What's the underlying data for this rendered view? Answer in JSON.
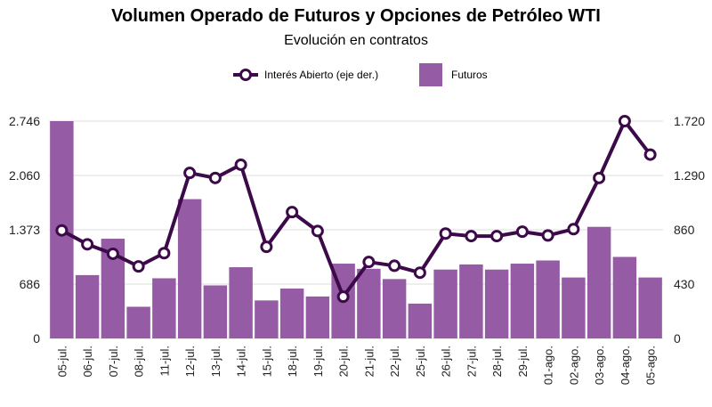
{
  "chart_data": {
    "type": "bar",
    "title": "Volumen Operado de Futuros y Opciones de Petróleo WTI",
    "subtitle": "Evolución en contratos",
    "categories": [
      "05-jul.",
      "06-jul.",
      "07-jul.",
      "08-jul.",
      "11-jul.",
      "12-jul.",
      "13-jul.",
      "14-jul.",
      "15-jul.",
      "18-jul.",
      "19-jul.",
      "20-jul.",
      "21-jul.",
      "22-jul.",
      "25-jul.",
      "26-jul.",
      "27-jul.",
      "28-jul.",
      "29-jul.",
      "01-ago.",
      "02-ago.",
      "03-ago.",
      "04-ago.",
      "05-ago."
    ],
    "series": [
      {
        "name": "Futuros",
        "type": "bar",
        "axis": "left",
        "color": "#955ba5",
        "values": [
          2746,
          800,
          1260,
          400,
          760,
          1760,
          670,
          900,
          480,
          630,
          530,
          945,
          880,
          750,
          440,
          870,
          935,
          870,
          945,
          985,
          770,
          1410,
          1030,
          770
        ]
      },
      {
        "name": "Interés Abierto (eje der.)",
        "type": "line",
        "axis": "right",
        "color": "#3d0a49",
        "values": [
          855,
          745,
          670,
          570,
          675,
          1310,
          1270,
          1375,
          725,
          1000,
          850,
          330,
          605,
          575,
          520,
          830,
          810,
          810,
          845,
          815,
          865,
          1270,
          1720,
          1455
        ]
      }
    ],
    "y_left": {
      "ticks": [
        "0",
        "686",
        "1.373",
        "2.060",
        "2.746"
      ],
      "tick_values": [
        0,
        686,
        1373,
        2060,
        2746
      ],
      "range": [
        0,
        2746
      ]
    },
    "y_right": {
      "ticks": [
        "0",
        "430",
        "860",
        "1.290",
        "1.720"
      ],
      "tick_values": [
        0,
        430,
        860,
        1290,
        1720
      ],
      "range": [
        0,
        1720
      ]
    },
    "grid": true,
    "legend_position": "top-center"
  }
}
